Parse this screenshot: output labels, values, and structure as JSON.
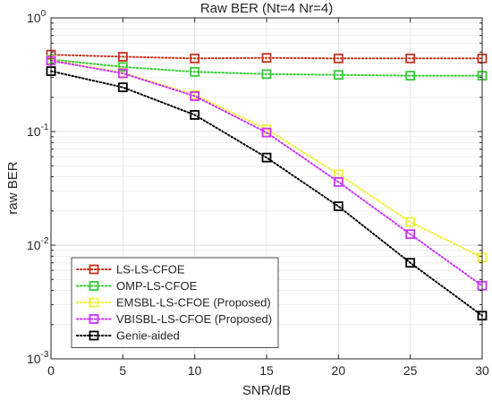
{
  "chart_data": {
    "type": "line",
    "title": "Raw BER (Nt=4 Nr=4)",
    "xlabel": "SNR/dB",
    "ylabel": "raw BER",
    "x": [
      0,
      5,
      10,
      15,
      20,
      25,
      30
    ],
    "xlim": [
      0,
      30
    ],
    "ylim": [
      0.001,
      1
    ],
    "yscale": "log",
    "xticks": [
      "0",
      "5",
      "10",
      "15",
      "20",
      "25",
      "30"
    ],
    "yticks": [
      {
        "value": 0.001,
        "base": "10",
        "exp": "-3"
      },
      {
        "value": 0.01,
        "base": "10",
        "exp": "-2"
      },
      {
        "value": 0.1,
        "base": "10",
        "exp": "-1"
      },
      {
        "value": 1,
        "base": "10",
        "exp": "0"
      }
    ],
    "grid": true,
    "legend_position": "bottom-left",
    "marker": "square",
    "line_style": "dotted",
    "series": [
      {
        "name": "LS-LS-CFOE",
        "color": "#c8321e",
        "values": [
          0.475,
          0.455,
          0.44,
          0.445,
          0.44,
          0.44,
          0.44
        ]
      },
      {
        "name": "OMP-LS-CFOE",
        "color": "#33cc33",
        "values": [
          0.43,
          0.37,
          0.335,
          0.32,
          0.315,
          0.31,
          0.31
        ]
      },
      {
        "name": "EMSBL-LS-CFOE (Proposed)",
        "color": "#f0f03c",
        "values": [
          0.425,
          0.33,
          0.21,
          0.105,
          0.042,
          0.016,
          0.0078
        ]
      },
      {
        "name": "VBISBL-LS-CFOE (Proposed)",
        "color": "#cc33ff",
        "values": [
          0.42,
          0.325,
          0.205,
          0.098,
          0.036,
          0.0125,
          0.0044
        ]
      },
      {
        "name": "Genie-aided",
        "color": "#000000",
        "values": [
          0.34,
          0.245,
          0.14,
          0.059,
          0.022,
          0.007,
          0.0024
        ]
      }
    ]
  }
}
